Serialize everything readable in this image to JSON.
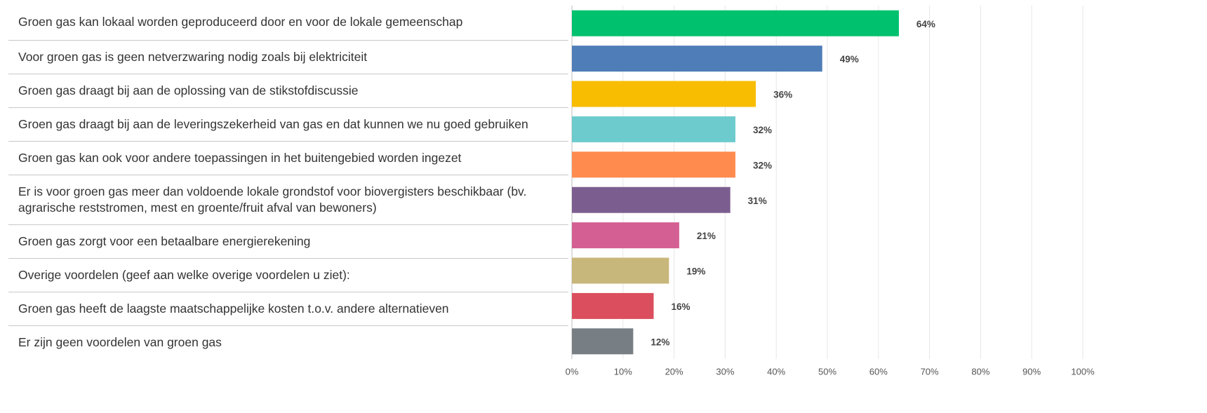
{
  "chart_data": {
    "type": "bar",
    "orientation": "horizontal",
    "categories": [
      "Groen gas kan lokaal worden geproduceerd door en voor de lokale gemeenschap",
      "Voor groen gas is geen netverzwaring nodig zoals bij elektriciteit",
      "Groen gas draagt bij aan de oplossing van de stikstofdiscussie",
      "Groen gas draagt bij aan de leveringszekerheid van gas en dat kunnen we nu goed gebruiken",
      "Groen gas kan ook voor andere toepassingen in het buitengebied worden ingezet",
      "Er is voor groen gas meer dan voldoende lokale grondstof voor biovergisters beschikbaar (bv. agrarische reststromen, mest en groente/fruit afval van bewoners)",
      "Groen gas zorgt voor een betaalbare energierekening",
      "Overige voordelen (geef aan welke overige voordelen u ziet):",
      "Groen gas heeft de laagste maatschappelijke kosten t.o.v. andere alternatieven",
      "Er zijn geen voordelen van groen gas"
    ],
    "values": [
      64,
      49,
      36,
      32,
      32,
      31,
      21,
      19,
      16,
      12
    ],
    "value_labels": [
      "64%",
      "49%",
      "36%",
      "32%",
      "32%",
      "31%",
      "21%",
      "19%",
      "16%",
      "12%"
    ],
    "colors": [
      "#00c16e",
      "#4f7db8",
      "#f8bd00",
      "#6dcbcd",
      "#ff8b4f",
      "#7b5e8f",
      "#d45f92",
      "#c8b77a",
      "#db4e5d",
      "#777f85"
    ],
    "xlim": [
      0,
      100
    ],
    "xticks": [
      {
        "value": 0,
        "label": "0%"
      },
      {
        "value": 10,
        "label": "10%"
      },
      {
        "value": 20,
        "label": "20%"
      },
      {
        "value": 30,
        "label": "30%"
      },
      {
        "value": 40,
        "label": "40%"
      },
      {
        "value": 50,
        "label": "50%"
      },
      {
        "value": 60,
        "label": "60%"
      },
      {
        "value": 70,
        "label": "70%"
      },
      {
        "value": 80,
        "label": "80%"
      },
      {
        "value": 90,
        "label": "90%"
      },
      {
        "value": 100,
        "label": "100%"
      }
    ],
    "grid": true
  }
}
